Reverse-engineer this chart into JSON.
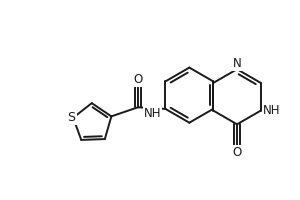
{
  "background_color": "#ffffff",
  "line_color": "#1a1a1a",
  "line_width": 1.4,
  "font_size": 8.5,
  "fig_width": 3.0,
  "fig_height": 2.0,
  "dpi": 100,
  "xlim": [
    0,
    9
  ],
  "ylim": [
    0,
    6
  ]
}
